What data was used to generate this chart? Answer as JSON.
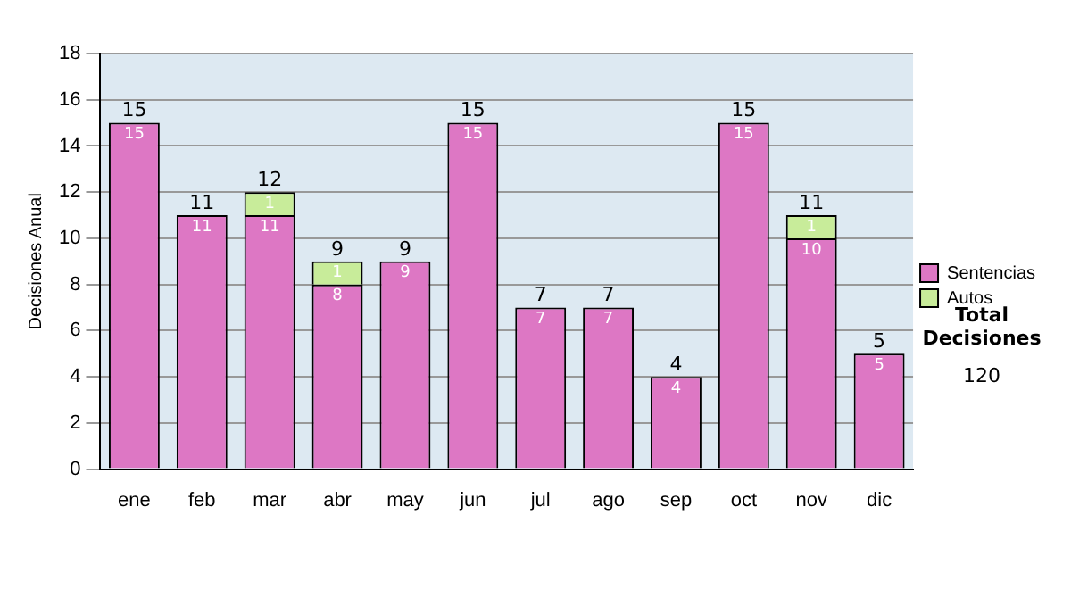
{
  "chart_data": {
    "type": "bar",
    "stacked": true,
    "ylabel": "Decisiones Anual",
    "categories": [
      "ene",
      "feb",
      "mar",
      "abr",
      "may",
      "jun",
      "jul",
      "ago",
      "sep",
      "oct",
      "nov",
      "dic"
    ],
    "series": [
      {
        "name": "Sentencias",
        "color": "#dd77c4",
        "values": [
          15,
          11,
          11,
          8,
          9,
          15,
          7,
          7,
          4,
          15,
          10,
          5
        ]
      },
      {
        "name": "Autos",
        "color": "#c8ec9a",
        "values": [
          null,
          null,
          1,
          1,
          null,
          null,
          null,
          null,
          null,
          null,
          1,
          null
        ]
      }
    ],
    "totals": [
      "15",
      "11",
      "12",
      "9",
      "9",
      "15",
      "7",
      "7",
      "4",
      "15",
      "11",
      "5"
    ],
    "data_labels": true,
    "ylim": [
      0,
      18
    ],
    "yticks": [
      0,
      2,
      4,
      6,
      8,
      10,
      12,
      14,
      16,
      18
    ],
    "grid": "y",
    "legend": "right",
    "annotations": [
      "Total Decisiones",
      "120"
    ]
  }
}
